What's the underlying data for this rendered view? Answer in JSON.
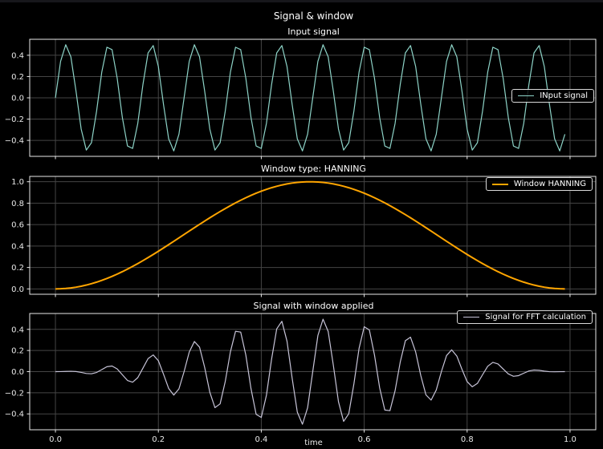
{
  "figure": {
    "suptitle": "Signal & window",
    "xlabel": "time",
    "background_color": "#000000",
    "text_color": "#ffffff",
    "grid_color": "#454545",
    "spine_color": "#e8e8e8",
    "xticks": [
      0.0,
      0.2,
      0.4,
      0.6,
      0.8,
      1.0
    ]
  },
  "chart_data": [
    {
      "id": "input-signal",
      "type": "line",
      "title": "Input signal",
      "legend": {
        "label": "INput signal",
        "location": "center right"
      },
      "color": "#8dd3c7",
      "linewidth": 1.2,
      "signal": {
        "kind": "sine",
        "amplitude": 0.5,
        "frequency_hz": 12,
        "n_samples": 100,
        "duration_s": 1.0
      },
      "xlim": [
        -0.05,
        1.05
      ],
      "ylim": [
        -0.55,
        0.55
      ],
      "yticks": [
        -0.4,
        -0.2,
        0.0,
        0.2,
        0.4
      ],
      "x_tick_labels_visible": false,
      "grid": true
    },
    {
      "id": "window",
      "type": "line",
      "title": "Window type: HANNING",
      "legend": {
        "label": "Window HANNING",
        "location": "upper right"
      },
      "color": "#ffa500",
      "linewidth": 2,
      "signal": {
        "kind": "hanning",
        "n_samples": 100
      },
      "xlim": [
        -0.05,
        1.05
      ],
      "ylim": [
        -0.05,
        1.05
      ],
      "yticks": [
        0.0,
        0.2,
        0.4,
        0.6,
        0.8,
        1.0
      ],
      "x_tick_labels_visible": false,
      "grid": true
    },
    {
      "id": "windowed-signal",
      "type": "line",
      "title": "Signal with window applied",
      "legend": {
        "label": "Signal for FFT calculation",
        "location": "upper right"
      },
      "color": "#c7c4d8",
      "linewidth": 1.2,
      "signal": {
        "kind": "product",
        "factors": [
          "sine",
          "hanning"
        ]
      },
      "xlim": [
        -0.05,
        1.05
      ],
      "ylim": [
        -0.55,
        0.55
      ],
      "yticks": [
        -0.4,
        -0.2,
        0.0,
        0.2,
        0.4
      ],
      "x_tick_labels_visible": true,
      "grid": true
    }
  ]
}
